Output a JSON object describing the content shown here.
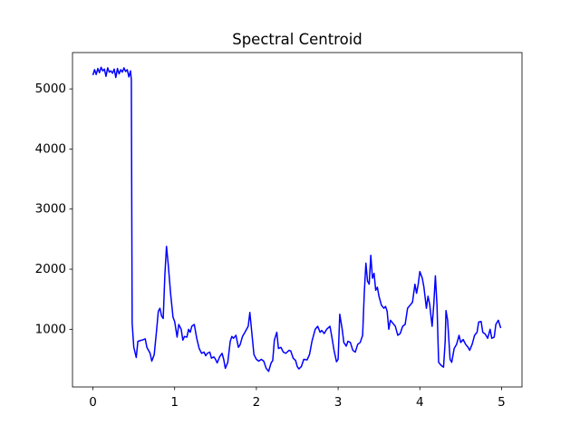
{
  "chart_data": {
    "type": "line",
    "title": "Spectral Centroid",
    "xlim": [
      -0.25,
      5.25
    ],
    "xticks": [
      0,
      1,
      2,
      3,
      4,
      5
    ],
    "ylim": [
      40,
      5605
    ],
    "yticks": [
      1000,
      2000,
      3000,
      4000,
      5000
    ],
    "series": [
      {
        "color": "#0000ff",
        "x": [
          0,
          0.02,
          0.04,
          0.06,
          0.08,
          0.1,
          0.12,
          0.14,
          0.16,
          0.18,
          0.2,
          0.22,
          0.24,
          0.26,
          0.28,
          0.3,
          0.32,
          0.34,
          0.36,
          0.38,
          0.4,
          0.42,
          0.44,
          0.46,
          0.47,
          0.48,
          0.5,
          0.53,
          0.55,
          0.6,
          0.64,
          0.66,
          0.7,
          0.72,
          0.75,
          0.78,
          0.8,
          0.82,
          0.84,
          0.86,
          0.88,
          0.9,
          0.92,
          0.95,
          0.98,
          1.0,
          1.03,
          1.05,
          1.08,
          1.1,
          1.12,
          1.15,
          1.17,
          1.19,
          1.21,
          1.24,
          1.27,
          1.3,
          1.33,
          1.36,
          1.38,
          1.4,
          1.43,
          1.45,
          1.48,
          1.5,
          1.52,
          1.55,
          1.58,
          1.6,
          1.62,
          1.65,
          1.68,
          1.7,
          1.72,
          1.75,
          1.78,
          1.8,
          1.83,
          1.86,
          1.9,
          1.92,
          1.94,
          1.97,
          2.0,
          2.03,
          2.06,
          2.09,
          2.12,
          2.15,
          2.18,
          2.2,
          2.22,
          2.25,
          2.27,
          2.3,
          2.33,
          2.36,
          2.4,
          2.42,
          2.45,
          2.48,
          2.5,
          2.52,
          2.55,
          2.58,
          2.62,
          2.65,
          2.68,
          2.72,
          2.75,
          2.78,
          2.8,
          2.83,
          2.86,
          2.9,
          2.92,
          2.95,
          2.98,
          3.0,
          3.02,
          3.05,
          3.07,
          3.1,
          3.12,
          3.15,
          3.18,
          3.21,
          3.24,
          3.27,
          3.3,
          3.32,
          3.34,
          3.36,
          3.38,
          3.4,
          3.42,
          3.44,
          3.46,
          3.48,
          3.5,
          3.53,
          3.56,
          3.58,
          3.6,
          3.62,
          3.64,
          3.67,
          3.7,
          3.73,
          3.76,
          3.79,
          3.82,
          3.85,
          3.88,
          3.91,
          3.94,
          3.96,
          3.98,
          4.0,
          4.03,
          4.05,
          4.08,
          4.1,
          4.12,
          4.15,
          4.17,
          4.19,
          4.21,
          4.23,
          4.26,
          4.29,
          4.31,
          4.32,
          4.34,
          4.37,
          4.39,
          4.42,
          4.45,
          4.48,
          4.5,
          4.53,
          4.56,
          4.59,
          4.61,
          4.64,
          4.67,
          4.7,
          4.72,
          4.75,
          4.77,
          4.8,
          4.83,
          4.86,
          4.88,
          4.91,
          4.93,
          4.96,
          4.99
        ],
        "values": [
          5230,
          5320,
          5240,
          5340,
          5270,
          5360,
          5300,
          5330,
          5210,
          5350,
          5280,
          5300,
          5260,
          5330,
          5190,
          5340,
          5250,
          5320,
          5280,
          5350,
          5290,
          5320,
          5200,
          5300,
          5150,
          1100,
          700,
          530,
          800,
          820,
          840,
          700,
          600,
          470,
          580,
          1000,
          1300,
          1350,
          1220,
          1180,
          1900,
          2380,
          2100,
          1600,
          1200,
          1130,
          870,
          1080,
          1000,
          820,
          880,
          870,
          1000,
          950,
          1050,
          1080,
          850,
          680,
          600,
          620,
          560,
          600,
          620,
          520,
          540,
          500,
          440,
          540,
          600,
          500,
          350,
          450,
          800,
          880,
          850,
          900,
          700,
          740,
          880,
          950,
          1050,
          1280,
          1000,
          580,
          500,
          470,
          500,
          470,
          350,
          300,
          440,
          480,
          820,
          950,
          680,
          700,
          620,
          600,
          650,
          640,
          520,
          480,
          380,
          340,
          380,
          500,
          490,
          580,
          800,
          1000,
          1050,
          950,
          980,
          930,
          1000,
          1050,
          900,
          650,
          460,
          500,
          1250,
          1000,
          780,
          720,
          800,
          780,
          650,
          620,
          750,
          780,
          900,
          1600,
          2100,
          1800,
          1750,
          2230,
          1850,
          1930,
          1650,
          1700,
          1550,
          1400,
          1350,
          1380,
          1300,
          1000,
          1150,
          1100,
          1050,
          900,
          930,
          1050,
          1080,
          1350,
          1400,
          1450,
          1750,
          1600,
          1750,
          1960,
          1850,
          1700,
          1350,
          1550,
          1420,
          1050,
          1400,
          1890,
          1400,
          450,
          400,
          370,
          800,
          1310,
          1150,
          500,
          450,
          680,
          750,
          900,
          780,
          830,
          750,
          700,
          650,
          750,
          900,
          950,
          1120,
          1130,
          950,
          920,
          850,
          1000,
          850,
          870,
          1080,
          1150,
          1020
        ]
      }
    ]
  }
}
